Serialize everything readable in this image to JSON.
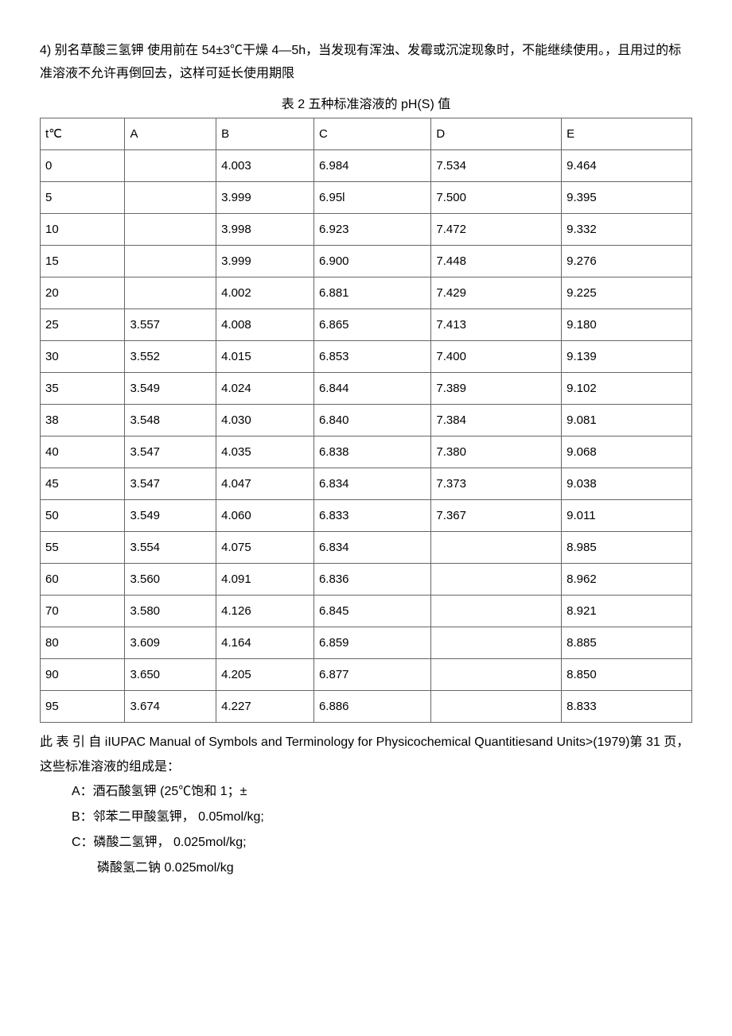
{
  "intro": "4) 别名草酸三氢钾 使用前在 54±3℃干燥 4—5h，当发现有浑浊、发霉或沉淀现象时，不能继续使用。，且用过的标准溶液不允许再倒回去，这样可延长使用期限",
  "table_title": "表 2 五种标准溶液的 pH(S) 值",
  "table": {
    "headers": [
      "t℃",
      "A",
      "B",
      "C",
      "D",
      "E"
    ],
    "rows": [
      [
        "0",
        "",
        "4.003",
        "6.984",
        "7.534",
        "9.464"
      ],
      [
        "5",
        "",
        "3.999",
        "6.95l",
        "7.500",
        "9.395"
      ],
      [
        "10",
        "",
        "3.998",
        "6.923",
        "7.472",
        "9.332"
      ],
      [
        "15",
        "",
        "3.999",
        "6.900",
        "7.448",
        "9.276"
      ],
      [
        "20",
        "",
        "4.002",
        "6.881",
        "7.429",
        "9.225"
      ],
      [
        "25",
        "3.557",
        "4.008",
        "6.865",
        "7.413",
        "9.180"
      ],
      [
        "30",
        "3.552",
        "4.015",
        "6.853",
        "7.400",
        "9.139"
      ],
      [
        "35",
        "3.549",
        "4.024",
        "6.844",
        "7.389",
        "9.102"
      ],
      [
        "38",
        "3.548",
        "4.030",
        "6.840",
        "7.384",
        "9.081"
      ],
      [
        "40",
        "3.547",
        "4.035",
        "6.838",
        "7.380",
        "9.068"
      ],
      [
        "45",
        "3.547",
        "4.047",
        "6.834",
        "7.373",
        "9.038"
      ],
      [
        "50",
        "3.549",
        "4.060",
        "6.833",
        "7.367",
        "9.011"
      ],
      [
        "55",
        "3.554",
        "4.075",
        "6.834",
        "",
        "8.985"
      ],
      [
        "60",
        "3.560",
        "4.091",
        "6.836",
        "",
        "8.962"
      ],
      [
        "70",
        "3.580",
        "4.126",
        "6.845",
        "",
        "8.921"
      ],
      [
        "80",
        "3.609",
        "4.164",
        "6.859",
        "",
        "8.885"
      ],
      [
        "90",
        "3.650",
        "4.205",
        "6.877",
        "",
        "8.850"
      ],
      [
        "95",
        "3.674",
        "4.227",
        "6.886",
        "",
        "8.833"
      ]
    ]
  },
  "footnote_line1": "此 表 引 自 iIUPAC Manual of Symbols and Terminology for Physicochemical Quantitiesand Units>(1979)第 31 页， 这些标准溶液的组成是：",
  "list": {
    "a": "A：酒石酸氢钾 (25℃饱和 1；±",
    "b": "B：邻苯二甲酸氢钾， 0.05mol/kg;",
    "c": "C：磷酸二氢钾， 0.025mol/kg;",
    "c2": "磷酸氢二钠 0.025mol/kg"
  }
}
